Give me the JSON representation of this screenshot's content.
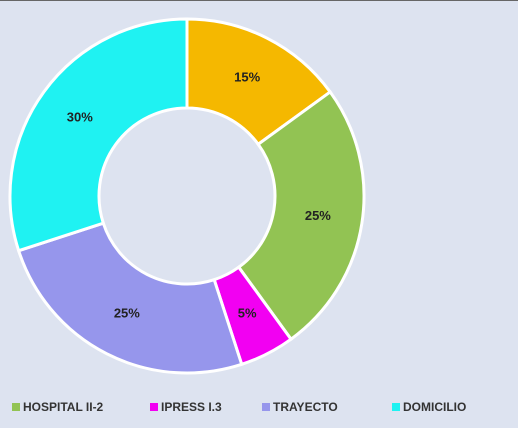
{
  "chart_data": {
    "type": "donut",
    "categories": [
      null,
      "HOSPITAL II-2",
      "IPRESS I.3",
      "TRAYECTO",
      "DOMICILIO"
    ],
    "values": [
      15,
      25,
      5,
      25,
      30
    ],
    "value_labels": [
      "15%",
      "25%",
      "5%",
      "25%",
      "30%"
    ],
    "colors": [
      "#f5b800",
      "#92c353",
      "#f200f2",
      "#9696ec",
      "#1ff2f2"
    ],
    "legend": "bottom"
  }
}
